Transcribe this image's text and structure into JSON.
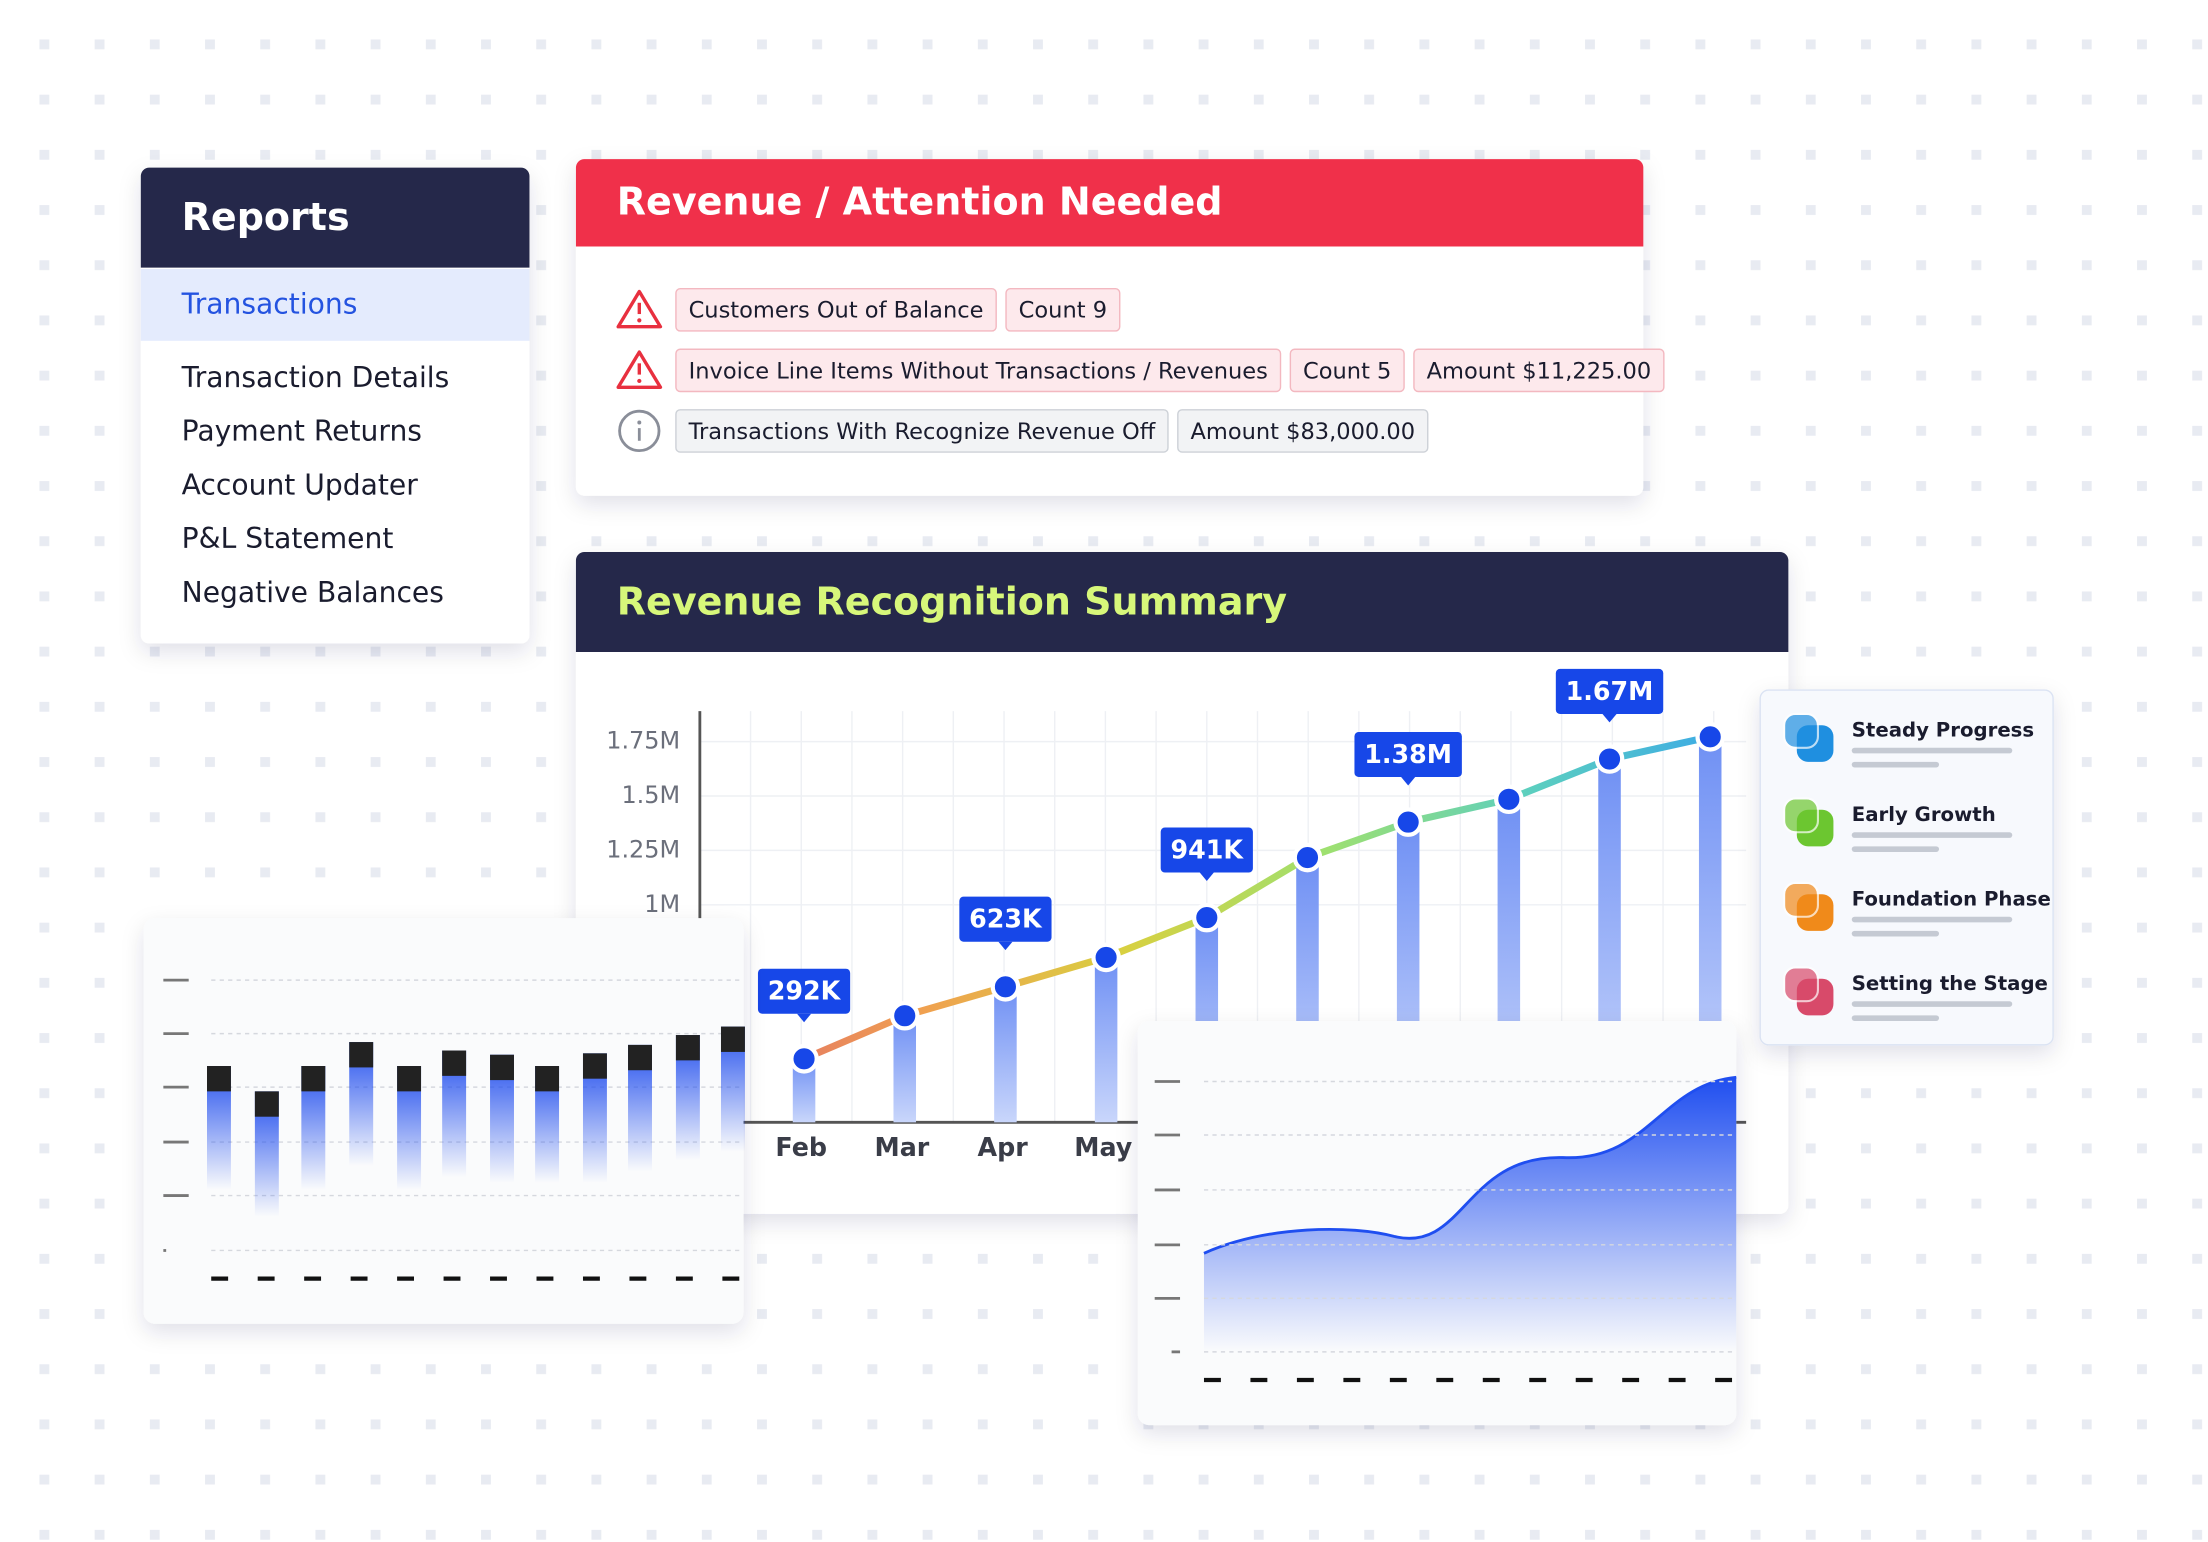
{
  "reports": {
    "title": "Reports",
    "items": [
      "Transactions",
      "Transaction Details",
      "Payment Returns",
      "Account Updater",
      "P&L Statement",
      "Negative Balances"
    ],
    "active": 0
  },
  "alerts": {
    "title": "Revenue / Attention Needed",
    "rows": [
      {
        "level": "warning",
        "chips": [
          "Customers Out of Balance",
          "Count 9"
        ]
      },
      {
        "level": "warning",
        "chips": [
          "Invoice Line Items Without Transactions / Revenues",
          "Count 5",
          "Amount $11,225.00"
        ]
      },
      {
        "level": "info",
        "chips": [
          "Transactions With Recognize Revenue Off",
          "Amount $83,000.00"
        ]
      }
    ]
  },
  "chart_data": {
    "type": "bar-line",
    "title": "Revenue Recognition Summary",
    "categories": [
      "Feb",
      "Mar",
      "Apr",
      "May",
      null,
      null,
      null,
      null,
      null,
      null
    ],
    "values": [
      292000,
      490000,
      623000,
      758000,
      941000,
      1217000,
      1380000,
      1485000,
      1670000,
      1772000
    ],
    "value_labels": [
      "292K",
      null,
      "623K",
      null,
      "941K",
      null,
      "1.38M",
      null,
      "1.67M",
      null
    ],
    "color": "#2b5cf0",
    "ylim": [
      0,
      1890000
    ],
    "yticks": [
      {
        "value": 1000000,
        "label": "1M"
      },
      {
        "value": 1250000,
        "label": "1.25M"
      },
      {
        "value": 1500000,
        "label": "1.5M"
      },
      {
        "value": 1750000,
        "label": "1.75M"
      }
    ],
    "grid": true
  },
  "legend": [
    {
      "name": "Steady Progress",
      "color": "#1f8fe0"
    },
    {
      "name": "Early Growth",
      "color": "#6cc630"
    },
    {
      "name": "Foundation Phase",
      "color": "#f08a1a"
    },
    {
      "name": "Setting the Stage",
      "color": "#d84a6a"
    }
  ]
}
